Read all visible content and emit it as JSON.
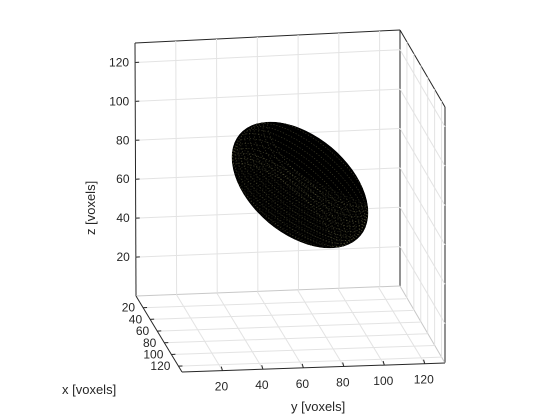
{
  "chart_data": {
    "type": "scatter",
    "subtype": "3d-voxel",
    "title": "",
    "xlabel": "x [voxels]",
    "ylabel": "y [voxels]",
    "zlabel": "z [voxels]",
    "xlim": [
      0,
      130
    ],
    "ylim": [
      0,
      130
    ],
    "zlim": [
      0,
      130
    ],
    "x_ticks": [
      "20",
      "40",
      "60",
      "80",
      "100",
      "120"
    ],
    "y_ticks": [
      "20",
      "40",
      "60",
      "80",
      "100",
      "120"
    ],
    "z_ticks": [
      "20",
      "40",
      "60",
      "80",
      "100",
      "120"
    ],
    "grid": true,
    "box": true,
    "marker_color": "#000000",
    "highlight_color": "#f5f0a0",
    "series": [
      {
        "shape": "rotated ellipsoid of voxels",
        "center": [
          65,
          65,
          65
        ],
        "semi_axis_major": 52,
        "semi_axis_minor": 24,
        "major_axis_tilt_deg": 40
      }
    ]
  }
}
